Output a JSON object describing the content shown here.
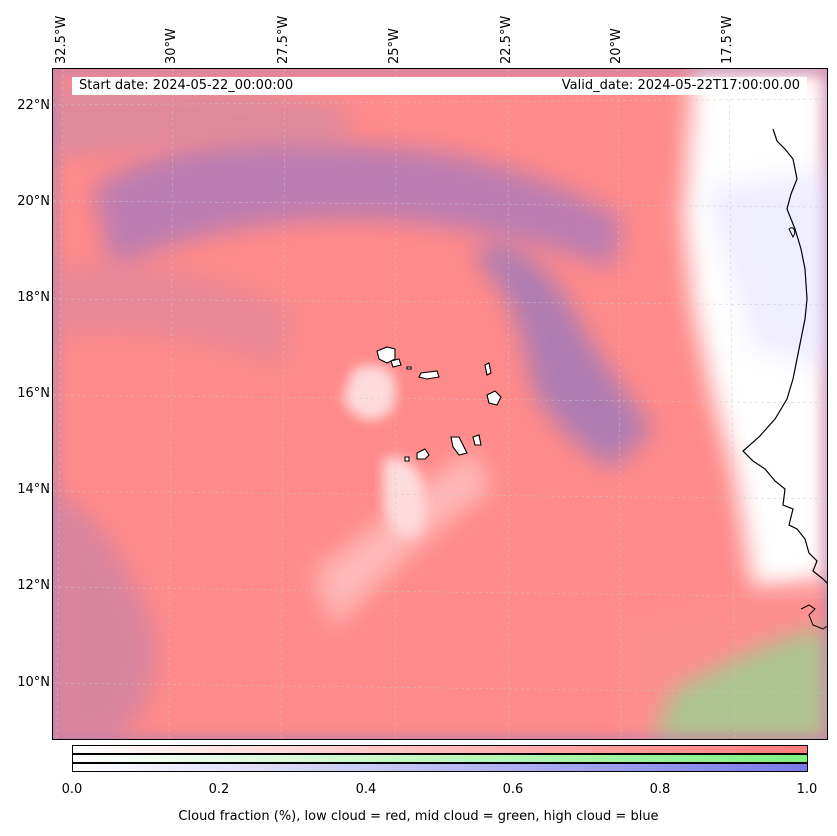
{
  "header": {
    "start_date": "Start date: 2024-05-22_00:00:00",
    "valid_date": "Valid_date: 2024-05-22T17:00:00.00"
  },
  "map": {
    "longitude_labels": [
      "32.5°W",
      "30°W",
      "27.5°W",
      "25°W",
      "22.5°W",
      "20°W",
      "17.5°W"
    ],
    "latitude_labels": [
      "22°N",
      "20°N",
      "18°N",
      "16°N",
      "14°N",
      "12°N",
      "10°N"
    ],
    "colors": {
      "low_cloud": "#ff8080",
      "mid_cloud": "#80e080",
      "high_cloud": "#8080e0",
      "coastline": "#000000",
      "gridline": "#c8c8c8"
    }
  },
  "colorbar": {
    "ticks": [
      "0.0",
      "0.2",
      "0.4",
      "0.6",
      "0.8",
      "1.0"
    ],
    "caption": "Cloud fraction (%), low cloud = red, mid cloud = green, high cloud = blue"
  }
}
